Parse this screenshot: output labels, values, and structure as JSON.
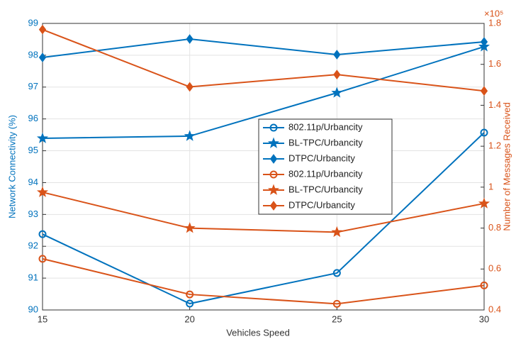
{
  "chart_data": {
    "type": "line",
    "xlabel": "Vehicles Speed",
    "ylabel": "Network Connectivity (%)",
    "y2label": "Number of Messages Received",
    "y2_multiplier": "×10⁵",
    "x": [
      15,
      20,
      25,
      30
    ],
    "xlim": [
      15,
      30
    ],
    "xticks": [
      15,
      20,
      25,
      30
    ],
    "ylim": [
      90,
      99
    ],
    "yticks": [
      90,
      91,
      92,
      93,
      94,
      95,
      96,
      97,
      98,
      99
    ],
    "y2lim": [
      0.4,
      1.8
    ],
    "y2ticks": [
      0.4,
      0.6,
      0.8,
      1,
      1.2,
      1.4,
      1.6,
      1.8
    ],
    "grid": true,
    "legend": "center",
    "series": [
      {
        "name": "802.11p/Urbancity",
        "color": "#0072bd",
        "marker": "circle",
        "values": [
          92.38,
          90.2,
          91.16,
          95.57
        ]
      },
      {
        "name": "BL-TPC/Urbancity",
        "color": "#0072bd",
        "marker": "star",
        "values": [
          95.39,
          95.46,
          96.82,
          98.27
        ]
      },
      {
        "name": "DTPC/Urbancity",
        "color": "#0072bd",
        "marker": "diamond",
        "values": [
          97.93,
          98.51,
          98.02,
          98.42
        ]
      },
      {
        "name": "802.11p/Urbancity",
        "color": "#d95319",
        "marker": "circle",
        "axis": "y2",
        "values": [
          0.65,
          0.476,
          0.43,
          0.52
        ]
      },
      {
        "name": "BL-TPC/Urbancity",
        "color": "#d95319",
        "marker": "star",
        "axis": "y2",
        "values": [
          0.975,
          0.8,
          0.78,
          0.92
        ]
      },
      {
        "name": "DTPC/Urbancity",
        "color": "#d95319",
        "marker": "diamond",
        "axis": "y2",
        "values": [
          1.77,
          1.49,
          1.55,
          1.47
        ]
      }
    ]
  }
}
